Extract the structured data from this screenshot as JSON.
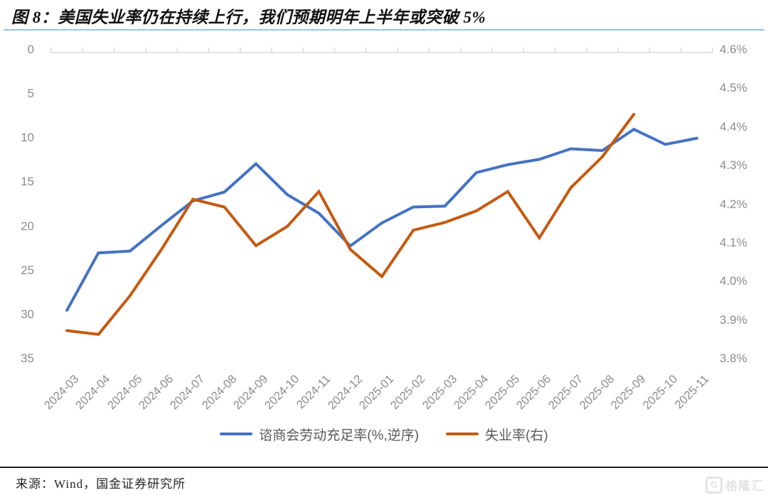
{
  "header": {
    "title": "图 8：美国失业率仍在持续上行，我们预期明年上半年或突破 5%"
  },
  "chart_data": {
    "type": "line",
    "title": "图 8：美国失业率仍在持续上行，我们预期明年上半年或突破 5%",
    "categories": [
      "2024-03",
      "2024-04",
      "2024-05",
      "2024-06",
      "2024-07",
      "2024-08",
      "2024-09",
      "2024-10",
      "2024-11",
      "2024-12",
      "2025-01",
      "2025-02",
      "2025-03",
      "2025-04",
      "2025-05",
      "2025-06",
      "2025-07",
      "2025-08",
      "2025-09",
      "2025-10",
      "2025-11"
    ],
    "series": [
      {
        "name": "谘商会劳动充足率(%,逆序)",
        "axis": "left",
        "color": "#4472C4",
        "values": [
          29.2,
          22.7,
          22.5,
          19.6,
          16.8,
          15.8,
          12.6,
          16.1,
          18.2,
          21.9,
          19.3,
          17.5,
          17.4,
          13.6,
          12.7,
          12.1,
          10.9,
          11.1,
          8.7,
          10.4,
          9.7
        ]
      },
      {
        "name": "失业率(右)",
        "axis": "right",
        "color": "#C55A11",
        "values": [
          3.88,
          3.87,
          3.97,
          4.09,
          4.22,
          4.2,
          4.1,
          4.15,
          4.24,
          4.09,
          4.02,
          4.14,
          4.16,
          4.19,
          4.24,
          4.12,
          4.25,
          4.33,
          4.44,
          null,
          null
        ]
      }
    ],
    "left_axis": {
      "min": 0,
      "max": 35,
      "inverted": true,
      "tick_labels": [
        "0",
        "5",
        "10",
        "15",
        "20",
        "25",
        "30",
        "35"
      ]
    },
    "right_axis": {
      "min": 3.8,
      "max": 4.6,
      "tick_labels": [
        "4.6%",
        "4.5%",
        "4.4%",
        "4.3%",
        "4.2%",
        "4.1%",
        "4.0%",
        "3.9%",
        "3.8%"
      ]
    },
    "grid": false,
    "legend_position": "bottom"
  },
  "footer": {
    "source": "来源：Wind，国金证券研究所",
    "watermark": "格隆汇",
    "watermark_icon": "G"
  }
}
